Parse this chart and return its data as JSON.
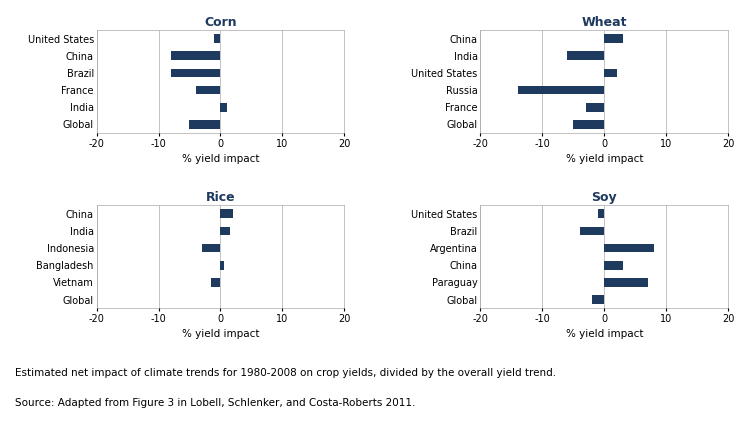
{
  "corn": {
    "title": "Corn",
    "countries": [
      "United States",
      "China",
      "Brazil",
      "France",
      "India",
      "Global"
    ],
    "values": [
      -1,
      -8,
      -8,
      -4,
      1,
      -5
    ]
  },
  "wheat": {
    "title": "Wheat",
    "countries": [
      "China",
      "India",
      "United States",
      "Russia",
      "France",
      "Global"
    ],
    "values": [
      3,
      -6,
      2,
      -14,
      -3,
      -5
    ]
  },
  "rice": {
    "title": "Rice",
    "countries": [
      "China",
      "India",
      "Indonesia",
      "Bangladesh",
      "Vietnam",
      "Global"
    ],
    "values": [
      2,
      1.5,
      -3,
      0.5,
      -1.5,
      0
    ]
  },
  "soy": {
    "title": "Soy",
    "countries": [
      "United States",
      "Brazil",
      "Argentina",
      "China",
      "Paraguay",
      "Global"
    ],
    "values": [
      -1,
      -4,
      8,
      3,
      7,
      -2
    ]
  },
  "bar_color": "#1e3a5f",
  "xlim": [
    -20,
    20
  ],
  "xticks": [
    -20,
    -10,
    0,
    10,
    20
  ],
  "xlabel": "% yield impact",
  "title_color": "#1e3a5f",
  "caption_line1": "Estimated net impact of climate trends for 1980-2008 on crop yields, divided by the overall yield trend.",
  "caption_line2": "Source: Adapted from Figure 3 in Lobell, Schlenker, and Costa-Roberts 2011."
}
